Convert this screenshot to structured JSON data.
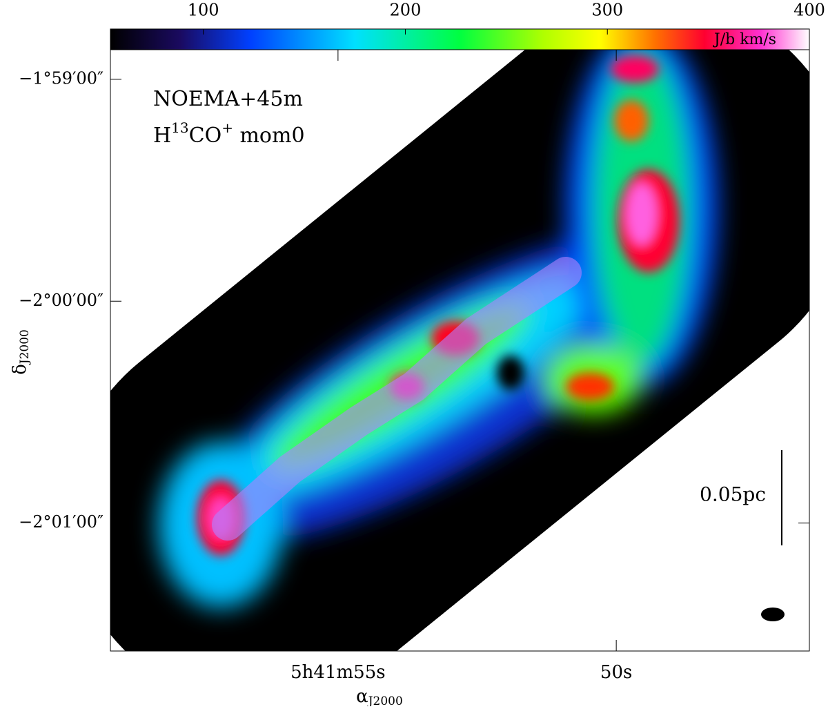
{
  "chart_data": {
    "type": "image",
    "annotation_line1": "NOEMA+45m",
    "annotation_line2_parts": [
      "H",
      "13",
      "CO",
      "+",
      " mom0"
    ],
    "colorbar": {
      "label": "J/b km/s",
      "lim": [
        54,
        400
      ],
      "ticks": [
        100,
        200,
        300,
        400
      ]
    },
    "xlabel": "α",
    "xlabel_sub": "J2000",
    "ylabel": "δ",
    "ylabel_sub": "J2000",
    "xlim": [
      59.09,
      46.53
    ],
    "xticks": [
      {
        "value": 55,
        "label": "5h41m55s"
      },
      {
        "value": 50,
        "label": "50s"
      }
    ],
    "ylim": [
      -7294.6,
      -7132.0
    ],
    "yticks": [
      {
        "value": -7140,
        "label": "−1°59′00″"
      },
      {
        "value": -7200,
        "label": "−2°00′00″"
      },
      {
        "value": -7260,
        "label": "−2°01′00″"
      }
    ],
    "scalebar_label": "0.05pc"
  }
}
